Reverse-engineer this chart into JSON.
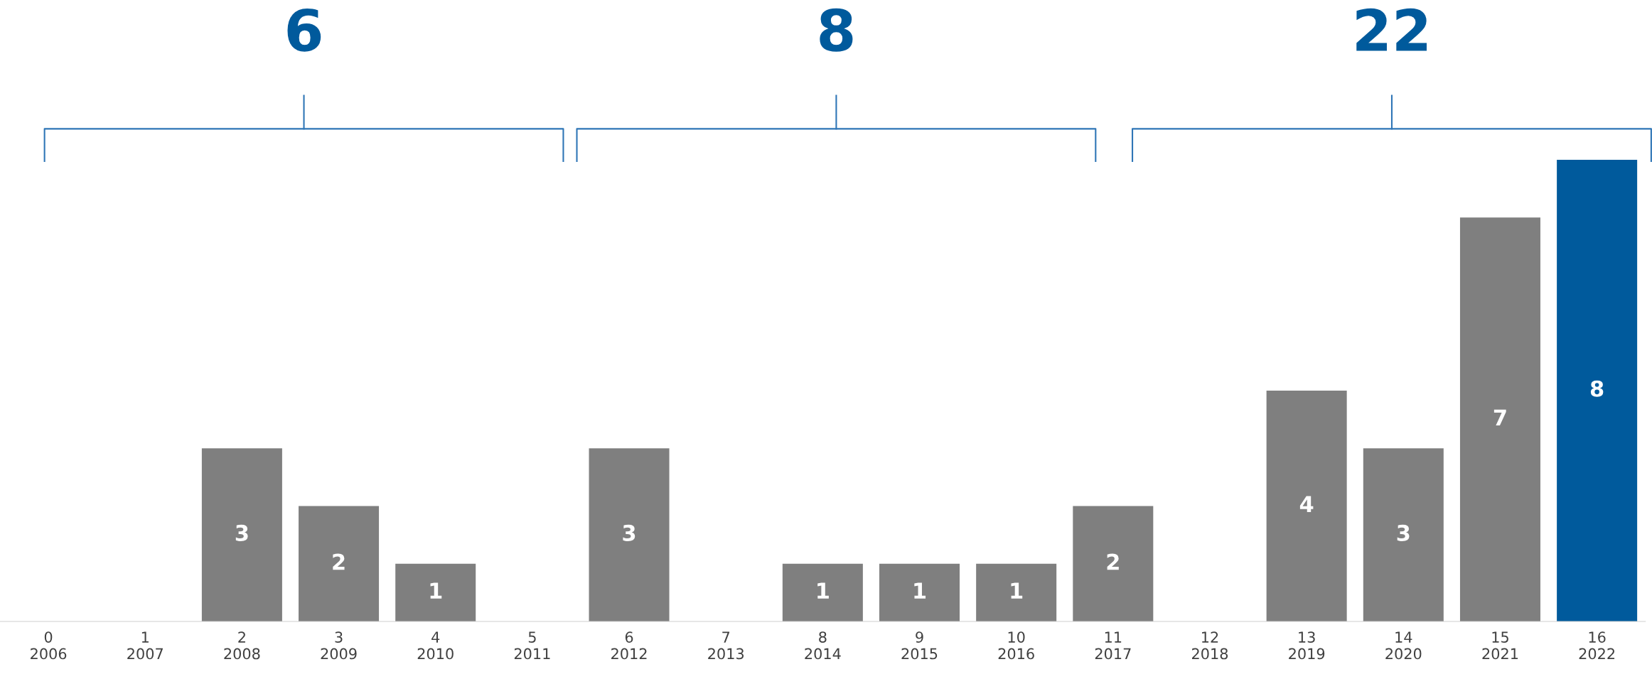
{
  "chart_data": {
    "type": "bar",
    "categories": [
      "0\n2006",
      "1\n2007",
      "2\n2008",
      "3\n2009",
      "4\n2010",
      "5\n2011",
      "6\n2012",
      "7\n2013",
      "8\n2014",
      "9\n2015",
      "10\n2016",
      "11\n2017",
      "12\n2018",
      "13\n2019",
      "14\n2020",
      "15\n2021",
      "16\n2022"
    ],
    "values": [
      0,
      0,
      3,
      2,
      1,
      0,
      3,
      0,
      1,
      1,
      1,
      2,
      0,
      4,
      3,
      7,
      8
    ],
    "colors": [
      "#7f7f7f",
      "#7f7f7f",
      "#7f7f7f",
      "#7f7f7f",
      "#7f7f7f",
      "#7f7f7f",
      "#7f7f7f",
      "#7f7f7f",
      "#7f7f7f",
      "#7f7f7f",
      "#7f7f7f",
      "#7f7f7f",
      "#7f7f7f",
      "#7f7f7f",
      "#7f7f7f",
      "#7f7f7f",
      "#005a9c"
    ],
    "value_labels": [
      null,
      null,
      "3",
      "2",
      "1",
      null,
      "3",
      null,
      "1",
      "1",
      "1",
      "2",
      null,
      "4",
      "3",
      "7",
      "8"
    ],
    "annotations": [
      "6",
      "8",
      "22"
    ],
    "grid": false,
    "legend": false
  }
}
